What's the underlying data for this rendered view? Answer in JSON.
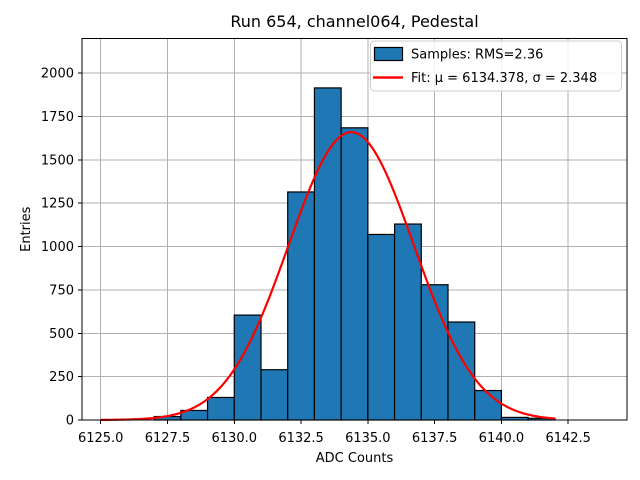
{
  "chart_data": {
    "type": "histogram",
    "title": "Run 654, channel064, Pedestal",
    "xlabel": "ADC Counts",
    "ylabel": "Entries",
    "xlim": [
      6124.3,
      6144.7
    ],
    "ylim": [
      0,
      2200
    ],
    "xticks": [
      6125.0,
      6127.5,
      6130.0,
      6132.5,
      6135.0,
      6137.5,
      6140.0,
      6142.5
    ],
    "yticks": [
      0,
      250,
      500,
      750,
      1000,
      1250,
      1500,
      1750,
      2000
    ],
    "grid": true,
    "grid_color": "#b0b0b0",
    "background": "#ffffff",
    "bin_edges": [
      6127,
      6128,
      6129,
      6130,
      6131,
      6132,
      6133,
      6134,
      6135,
      6136,
      6137,
      6138,
      6139,
      6140,
      6141,
      6142
    ],
    "counts": [
      20,
      55,
      130,
      605,
      290,
      1315,
      1915,
      1685,
      1070,
      1130,
      780,
      565,
      170,
      15,
      10
    ],
    "bar_color": "#1f77b4",
    "bar_edge_color": "#000000",
    "fit": {
      "mu": 6134.378,
      "sigma": 2.348,
      "peak": 1660,
      "x_start": 6125.0,
      "x_end": 6142.0,
      "color": "#ff0000"
    },
    "legend": {
      "position": "upper right",
      "items": [
        {
          "swatch": "patch",
          "label": "Samples: RMS=2.36"
        },
        {
          "swatch": "line",
          "label": "Fit: μ = 6134.378, σ = 2.348"
        }
      ]
    }
  }
}
